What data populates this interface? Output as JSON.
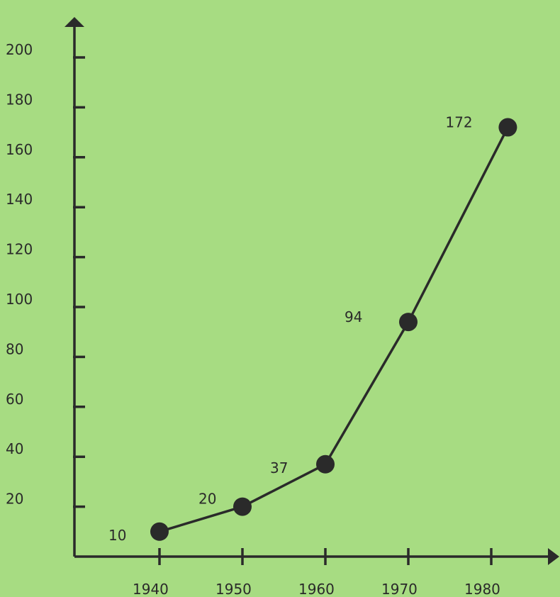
{
  "chart_data": {
    "type": "line",
    "title": "",
    "xlabel": "",
    "ylabel": "",
    "categories": [
      "1940",
      "1950",
      "1960",
      "1970",
      "1980"
    ],
    "x_ticks": [
      "1940",
      "1950",
      "1960",
      "1970",
      "1980"
    ],
    "y_ticks": [
      "20",
      "40",
      "60",
      "80",
      "100",
      "120",
      "140",
      "160",
      "180",
      "200"
    ],
    "ylim": [
      0,
      200
    ],
    "grid": false,
    "series": [
      {
        "points": [
          {
            "x": 1940,
            "y": 10,
            "label": "10"
          },
          {
            "x": 1950,
            "y": 20,
            "label": "20"
          },
          {
            "x": 1960,
            "y": 37,
            "label": "37"
          },
          {
            "x": 1970,
            "y": 94,
            "label": "94"
          },
          {
            "x": 1982,
            "y": 172,
            "label": "172"
          }
        ]
      }
    ],
    "colors": {
      "background": "#a7dc82",
      "ink": "#2a2a2a"
    }
  }
}
